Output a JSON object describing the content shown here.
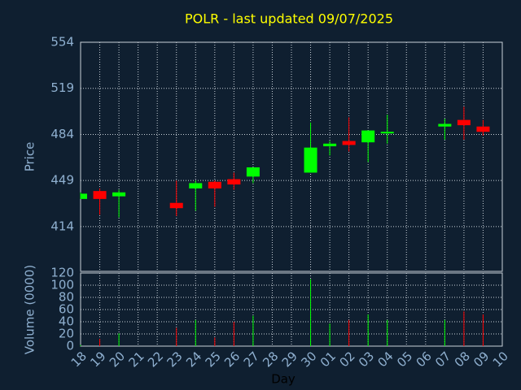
{
  "chart_data": {
    "type": "candlestick",
    "title": "POLR - last updated 09/07/2025",
    "ylabel": "Price",
    "volume_label": "Volume (0000)",
    "xlabel": "Day",
    "categories": [
      "18",
      "19",
      "20",
      "21",
      "22",
      "23",
      "24",
      "25",
      "26",
      "27",
      "28",
      "29",
      "30",
      "01",
      "02",
      "03",
      "04",
      "05",
      "06",
      "07",
      "08",
      "09",
      "10"
    ],
    "open": [
      435,
      441,
      437,
      null,
      null,
      432,
      443,
      448,
      450,
      452,
      null,
      null,
      455,
      475,
      479,
      478,
      485,
      null,
      null,
      490,
      495,
      490,
      null
    ],
    "high": [
      440,
      443,
      442,
      null,
      null,
      449,
      449,
      449,
      455,
      459,
      null,
      null,
      493,
      479,
      497,
      487,
      499,
      null,
      null,
      496,
      505,
      495,
      null
    ],
    "low": [
      435,
      423,
      421,
      null,
      null,
      422,
      426,
      429,
      442,
      447,
      null,
      null,
      455,
      468,
      471,
      463,
      477,
      null,
      null,
      480,
      480,
      483,
      null
    ],
    "close": [
      439,
      435,
      440,
      null,
      null,
      428,
      447,
      443,
      446,
      459,
      null,
      null,
      474,
      477,
      476,
      487,
      486,
      null,
      null,
      492,
      491,
      486,
      null
    ],
    "volume": [
      2,
      12,
      21,
      null,
      null,
      30,
      43,
      14,
      40,
      50,
      null,
      null,
      110,
      37,
      43,
      52,
      43,
      null,
      null,
      43,
      57,
      52,
      null
    ],
    "up_color": "#00ff00",
    "down_color": "#ff0000",
    "ylim": [
      380,
      554
    ],
    "yticks": [
      414,
      449,
      484,
      519,
      554
    ],
    "volume_ylim": [
      0,
      120
    ],
    "volume_yticks": [
      0,
      20,
      40,
      60,
      80,
      100,
      120
    ],
    "grid": true
  }
}
